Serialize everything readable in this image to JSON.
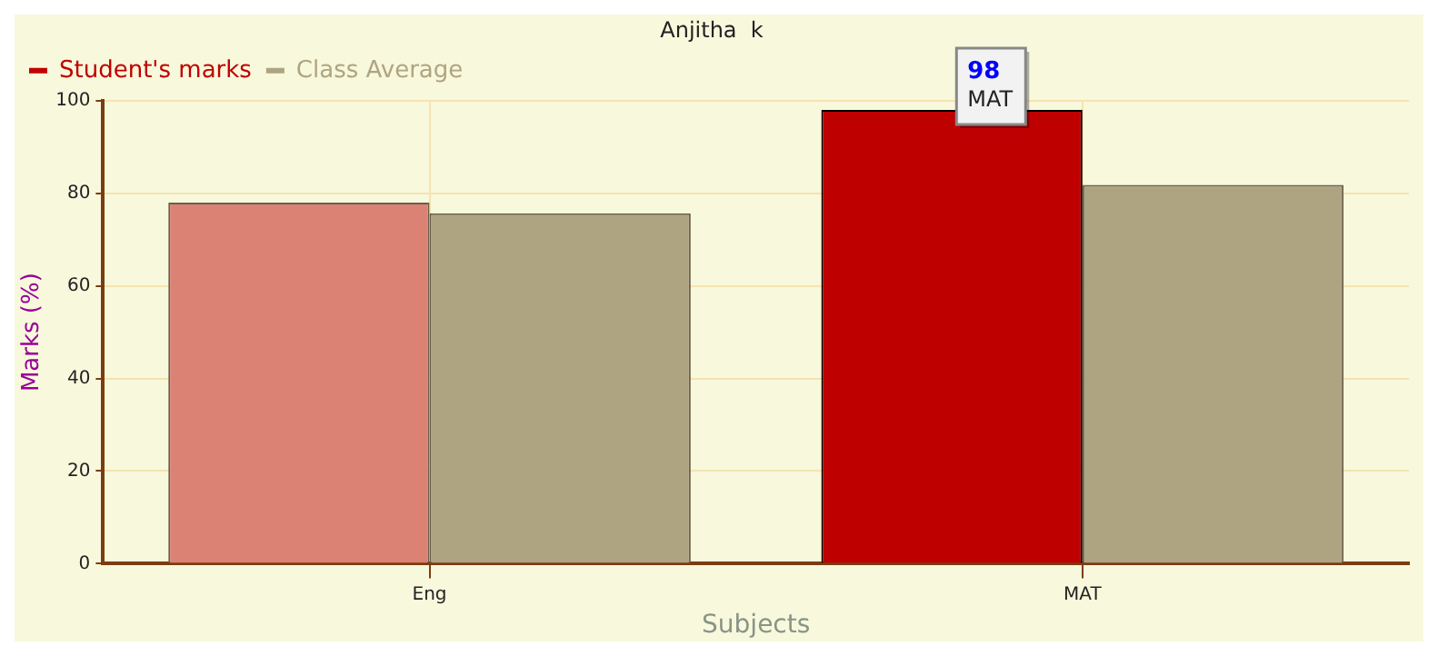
{
  "chart_data": {
    "type": "bar",
    "title": "Anjitha  k",
    "xlabel": "Subjects",
    "ylabel": "Marks (%)",
    "categories": [
      "Eng",
      "MAT"
    ],
    "series": [
      {
        "name": "Student's marks",
        "color": "#bf0000",
        "colors": [
          "#dc8274",
          "#bf0000"
        ],
        "values": [
          78,
          98
        ],
        "value_labels": [
          null,
          "98"
        ]
      },
      {
        "name": "Class Average",
        "color": "#afa482",
        "values": [
          75.7,
          81.8
        ]
      }
    ],
    "ylim": [
      0,
      100
    ],
    "yticks": [
      0,
      20,
      40,
      60,
      80,
      100
    ],
    "grid": true,
    "legend": "top left",
    "annotations": [
      "MAT"
    ]
  }
}
